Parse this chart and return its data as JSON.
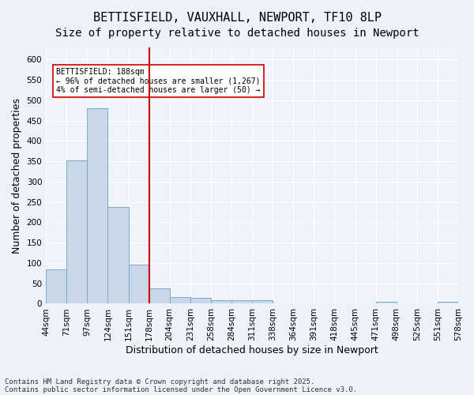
{
  "title1": "BETTISFIELD, VAUXHALL, NEWPORT, TF10 8LP",
  "title2": "Size of property relative to detached houses in Newport",
  "xlabel": "Distribution of detached houses by size in Newport",
  "ylabel": "Number of detached properties",
  "bar_values": [
    85,
    352,
    481,
    237,
    96,
    38,
    16,
    15,
    8,
    9,
    8,
    0,
    0,
    0,
    0,
    0,
    5,
    0,
    0,
    5
  ],
  "categories": [
    "44sqm",
    "71sqm",
    "97sqm",
    "124sqm",
    "151sqm",
    "178sqm",
    "204sqm",
    "231sqm",
    "258sqm",
    "284sqm",
    "311sqm",
    "338sqm",
    "364sqm",
    "391sqm",
    "418sqm",
    "445sqm",
    "471sqm",
    "498sqm",
    "525sqm",
    "551sqm",
    "578sqm"
  ],
  "bar_color": "#c8d8e8",
  "bar_edgecolor": "#7aabcf",
  "vline_x": 5.0,
  "vline_color": "#cc0000",
  "annotation_text": "BETTISFIELD: 188sqm\n← 96% of detached houses are smaller (1,267)\n4% of semi-detached houses are larger (50) →",
  "annotation_box_edgecolor": "#cc0000",
  "annotation_box_facecolor": "#ffffff",
  "ylim": [
    0,
    630
  ],
  "yticks": [
    0,
    50,
    100,
    150,
    200,
    250,
    300,
    350,
    400,
    450,
    500,
    550,
    600
  ],
  "footer1": "Contains HM Land Registry data © Crown copyright and database right 2025.",
  "footer2": "Contains public sector information licensed under the Open Government Licence v3.0.",
  "bg_color": "#eef2f8",
  "plot_bg_color": "#f0f4fa",
  "title_fontsize": 11,
  "subtitle_fontsize": 10,
  "axis_fontsize": 9,
  "tick_fontsize": 7.5,
  "footer_fontsize": 6.5
}
